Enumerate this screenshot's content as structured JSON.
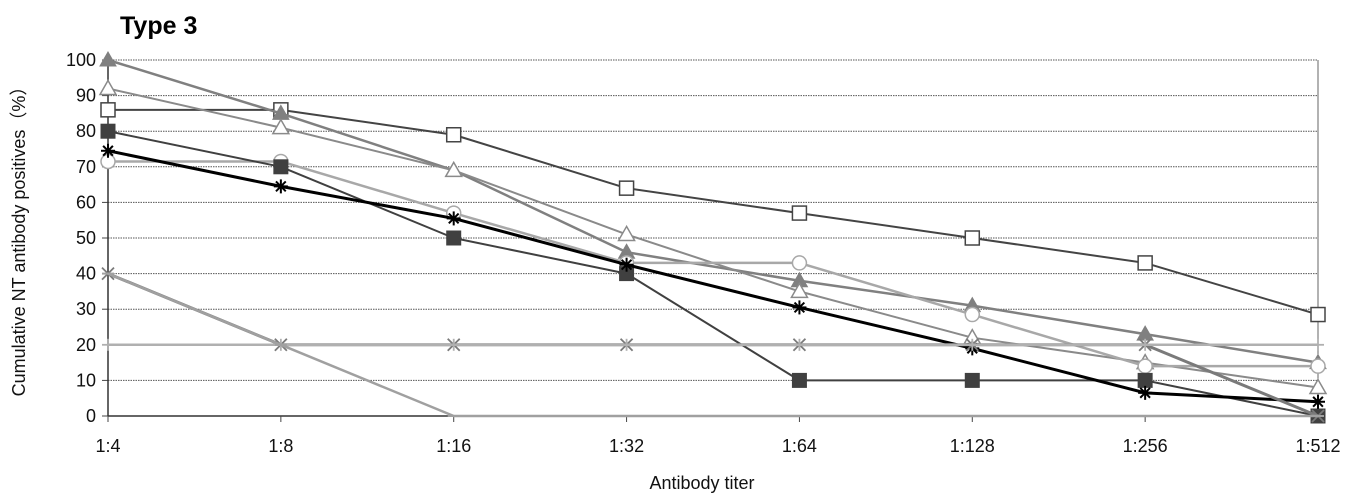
{
  "chart_data": {
    "type": "line",
    "title": "Type 3",
    "xlabel": "Antibody titer",
    "ylabel": "Cumulative NT antibody positives（%）",
    "categories": [
      "1:4",
      "1:8",
      "1:16",
      "1:32",
      "1:64",
      "1:128",
      "1:256",
      "1:512"
    ],
    "ylim": [
      0,
      100
    ],
    "yticks": [
      0,
      10,
      20,
      30,
      40,
      50,
      60,
      70,
      80,
      90,
      100
    ],
    "grid": true,
    "legend": "none",
    "series": [
      {
        "marker": "open-square",
        "color": "#444444",
        "stroke_width": 2,
        "values": [
          86,
          86,
          79,
          64,
          57,
          50,
          43,
          28.5
        ]
      },
      {
        "marker": "filled-triangle",
        "color": "#808080",
        "stroke_width": 2.5,
        "values": [
          100,
          85,
          69,
          46,
          38,
          31,
          23,
          15
        ]
      },
      {
        "marker": "open-triangle",
        "color": "#8a8a8a",
        "stroke_width": 2,
        "values": [
          92,
          81,
          69,
          51,
          35,
          22,
          15,
          8
        ]
      },
      {
        "marker": "open-circle",
        "color": "#a8a8a8",
        "stroke_width": 2.5,
        "values": [
          71.5,
          71.5,
          57,
          43,
          43,
          28.5,
          14,
          14
        ]
      },
      {
        "marker": "filled-square",
        "color": "#404040",
        "stroke_width": 2,
        "values": [
          80,
          70,
          50,
          40,
          10,
          10,
          10,
          0
        ]
      },
      {
        "marker": "asterisk",
        "color": "#000000",
        "stroke_width": 3,
        "values": [
          74.5,
          64.5,
          55.5,
          42.5,
          30.5,
          19,
          6.5,
          4
        ]
      },
      {
        "marker": "x-cross",
        "color": "#7a7a7a",
        "stroke_width": 3,
        "values": [
          40,
          20,
          20,
          20,
          20,
          20,
          20,
          0
        ]
      },
      {
        "marker": "plus",
        "color": "#b0b0b0",
        "stroke_width": 2.5,
        "values": [
          20,
          20,
          20,
          20,
          20,
          20,
          20,
          20
        ]
      },
      {
        "marker": "dash",
        "color": "#a0a0a0",
        "stroke_width": 2.5,
        "values": [
          40,
          20,
          0,
          0,
          0,
          0,
          0,
          0
        ]
      }
    ]
  }
}
